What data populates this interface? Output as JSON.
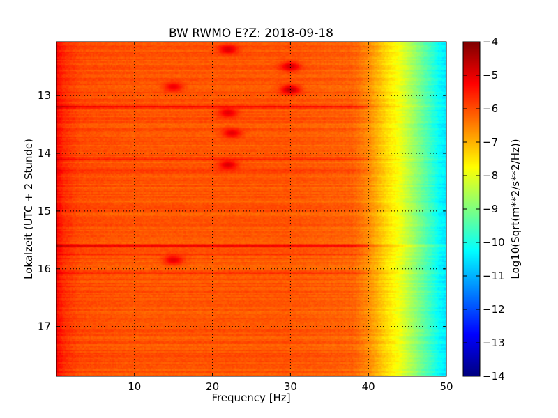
{
  "chart_data": {
    "type": "heatmap",
    "title": "BW RWMO E?Z: 2018-09-18",
    "xlabel": "Frequency [Hz]",
    "ylabel": "Lokalzeit (UTC + 2 Stunde)",
    "xlim": [
      0,
      50
    ],
    "ylim": [
      12.07,
      17.86
    ],
    "y_inverted": true,
    "x_ticks": [
      10,
      20,
      30,
      40,
      50
    ],
    "y_ticks": [
      13,
      14,
      15,
      16,
      17
    ],
    "grid": true,
    "grid_style": "dotted",
    "colormap": "jet",
    "colorbar": {
      "label": "Log10(Sqrt(m**2/s**2/Hz))",
      "min": -14,
      "max": -4,
      "ticks": [
        -4,
        -5,
        -6,
        -7,
        -8,
        -9,
        -10,
        -11,
        -12,
        -13,
        -14
      ],
      "colors": [
        "#00007f",
        "#0000ff",
        "#007fff",
        "#00ffff",
        "#7fff7f",
        "#ffff00",
        "#ff7f00",
        "#ff0000",
        "#7f0000"
      ]
    },
    "spectrum_profile": {
      "freq": [
        0,
        1,
        3,
        10,
        20,
        30,
        38,
        40,
        42,
        44,
        46,
        48,
        49,
        50
      ],
      "level": [
        -5.3,
        -5.7,
        -6.0,
        -6.1,
        -6.1,
        -6.1,
        -6.2,
        -6.6,
        -7.3,
        -7.9,
        -8.8,
        -9.7,
        -10.2,
        -10.5
      ]
    },
    "bands": [
      {
        "time": 13.2,
        "level": -5.0
      },
      {
        "time": 13.4,
        "level": -5.7
      },
      {
        "time": 13.6,
        "level": -5.7
      },
      {
        "time": 14.1,
        "level": -5.5
      },
      {
        "time": 14.3,
        "level": -5.6
      },
      {
        "time": 15.6,
        "level": -5.1
      },
      {
        "time": 15.75,
        "level": -5.6
      },
      {
        "time": 16.08,
        "level": -5.6
      }
    ],
    "hotspots": [
      {
        "freq": 30,
        "time": 12.9,
        "level": -4.6
      },
      {
        "freq": 30,
        "time": 12.5,
        "level": -4.8
      },
      {
        "freq": 22,
        "time": 12.2,
        "level": -4.9
      },
      {
        "freq": 22,
        "time": 13.3,
        "level": -5.0
      },
      {
        "freq": 22.5,
        "time": 13.65,
        "level": -5.0
      },
      {
        "freq": 22,
        "time": 14.2,
        "level": -4.9
      },
      {
        "freq": 15,
        "time": 12.85,
        "level": -5.1
      },
      {
        "freq": 15,
        "time": 15.85,
        "level": -5.0
      }
    ]
  }
}
